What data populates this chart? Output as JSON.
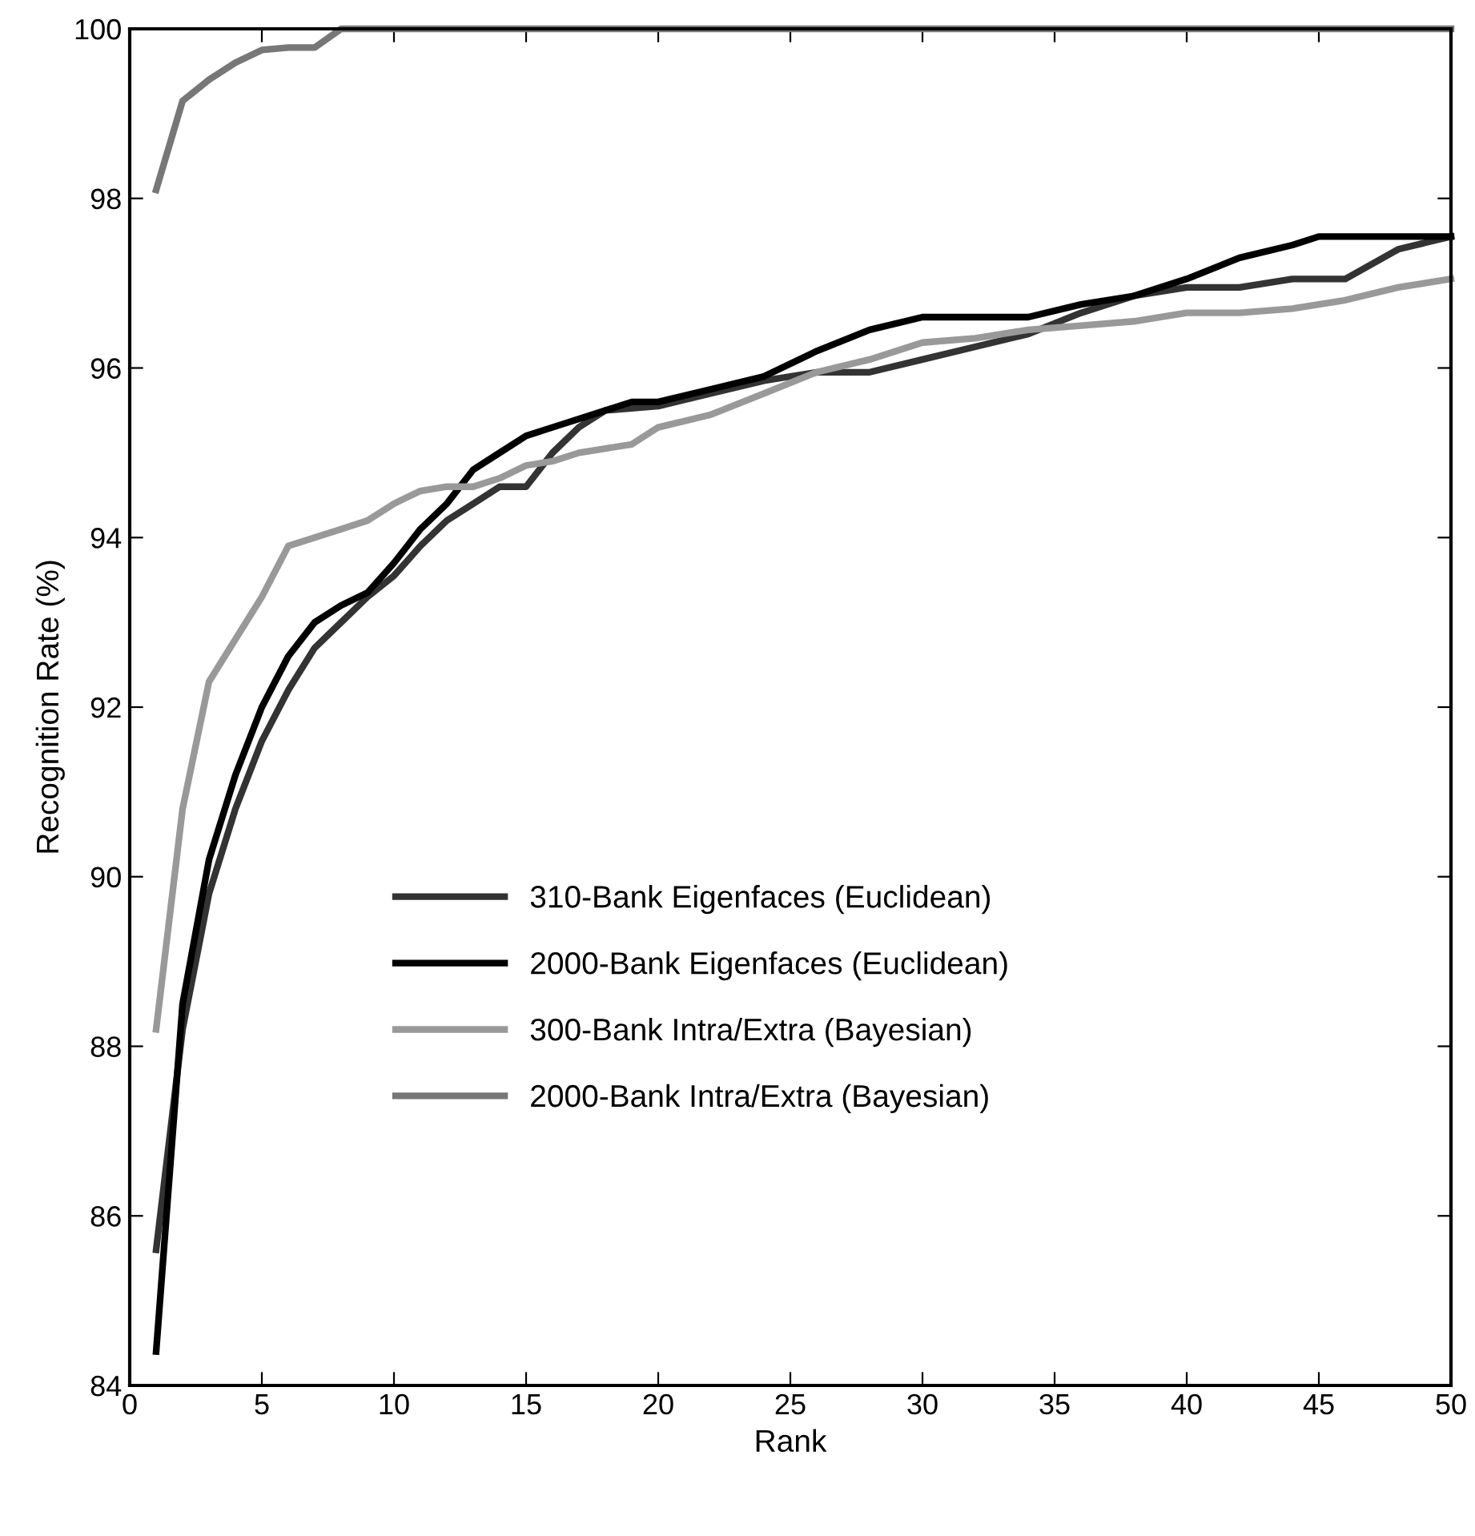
{
  "chart_data": {
    "type": "line",
    "xlabel": "Rank",
    "ylabel": "Recognition Rate (%)",
    "xlim": [
      0,
      50
    ],
    "ylim": [
      84,
      100
    ],
    "xticks": [
      0,
      5,
      10,
      15,
      20,
      25,
      30,
      35,
      40,
      45,
      50
    ],
    "yticks": [
      84,
      86,
      88,
      90,
      92,
      94,
      96,
      98,
      100
    ],
    "grid": false,
    "legend": "bottom left",
    "marker": "none",
    "line_style": "solid",
    "series": [
      {
        "name": "310-Bank Eigenfaces (Euclidean)",
        "color": "#333333",
        "x": [
          1,
          2,
          3,
          4,
          5,
          6,
          7,
          8,
          9,
          10,
          11,
          12,
          13,
          14,
          15,
          16,
          17,
          18,
          20,
          22,
          24,
          26,
          28,
          30,
          32,
          34,
          36,
          38,
          40,
          42,
          44,
          46,
          48,
          50
        ],
        "values": [
          85.6,
          88.2,
          89.8,
          90.8,
          91.6,
          92.2,
          92.7,
          93.0,
          93.3,
          93.55,
          93.9,
          94.2,
          94.4,
          94.6,
          94.6,
          95.0,
          95.3,
          95.5,
          95.55,
          95.7,
          95.85,
          95.95,
          95.95,
          96.1,
          96.25,
          96.4,
          96.65,
          96.85,
          96.95,
          96.95,
          97.05,
          97.05,
          97.4,
          97.55
        ]
      },
      {
        "name": "2000-Bank Eigenfaces (Euclidean)",
        "color": "#000000",
        "x": [
          1,
          2,
          3,
          4,
          5,
          6,
          7,
          8,
          9,
          10,
          11,
          12,
          13,
          14,
          15,
          16,
          18,
          19,
          20,
          22,
          24,
          26,
          28,
          30,
          32,
          34,
          36,
          38,
          40,
          42,
          44,
          45,
          50
        ],
        "values": [
          84.4,
          88.5,
          90.2,
          91.2,
          92.0,
          92.6,
          93.0,
          93.2,
          93.35,
          93.7,
          94.1,
          94.4,
          94.8,
          95.0,
          95.2,
          95.3,
          95.5,
          95.6,
          95.6,
          95.75,
          95.9,
          96.2,
          96.45,
          96.6,
          96.6,
          96.6,
          96.75,
          96.85,
          97.05,
          97.3,
          97.45,
          97.55,
          97.55
        ]
      },
      {
        "name": "300-Bank Intra/Extra (Bayesian)",
        "color": "#999999",
        "x": [
          1,
          2,
          3,
          4,
          5,
          6,
          7,
          8,
          9,
          10,
          11,
          12,
          13,
          14,
          15,
          16,
          17,
          18,
          19,
          20,
          22,
          24,
          26,
          28,
          30,
          32,
          34,
          36,
          38,
          40,
          42,
          44,
          46,
          48,
          50
        ],
        "values": [
          88.2,
          90.8,
          92.3,
          92.8,
          93.3,
          93.9,
          94.0,
          94.1,
          94.2,
          94.4,
          94.55,
          94.6,
          94.6,
          94.7,
          94.85,
          94.9,
          95.0,
          95.05,
          95.1,
          95.3,
          95.45,
          95.7,
          95.95,
          96.1,
          96.3,
          96.35,
          96.45,
          96.5,
          96.55,
          96.65,
          96.65,
          96.7,
          96.8,
          96.95,
          97.05
        ]
      },
      {
        "name": "2000-Bank Intra/Extra (Bayesian)",
        "color": "#777777",
        "x": [
          1,
          2,
          3,
          4,
          5,
          6,
          7,
          8,
          50
        ],
        "values": [
          98.1,
          99.15,
          99.4,
          99.6,
          99.75,
          99.78,
          99.78,
          100,
          100
        ]
      }
    ]
  }
}
